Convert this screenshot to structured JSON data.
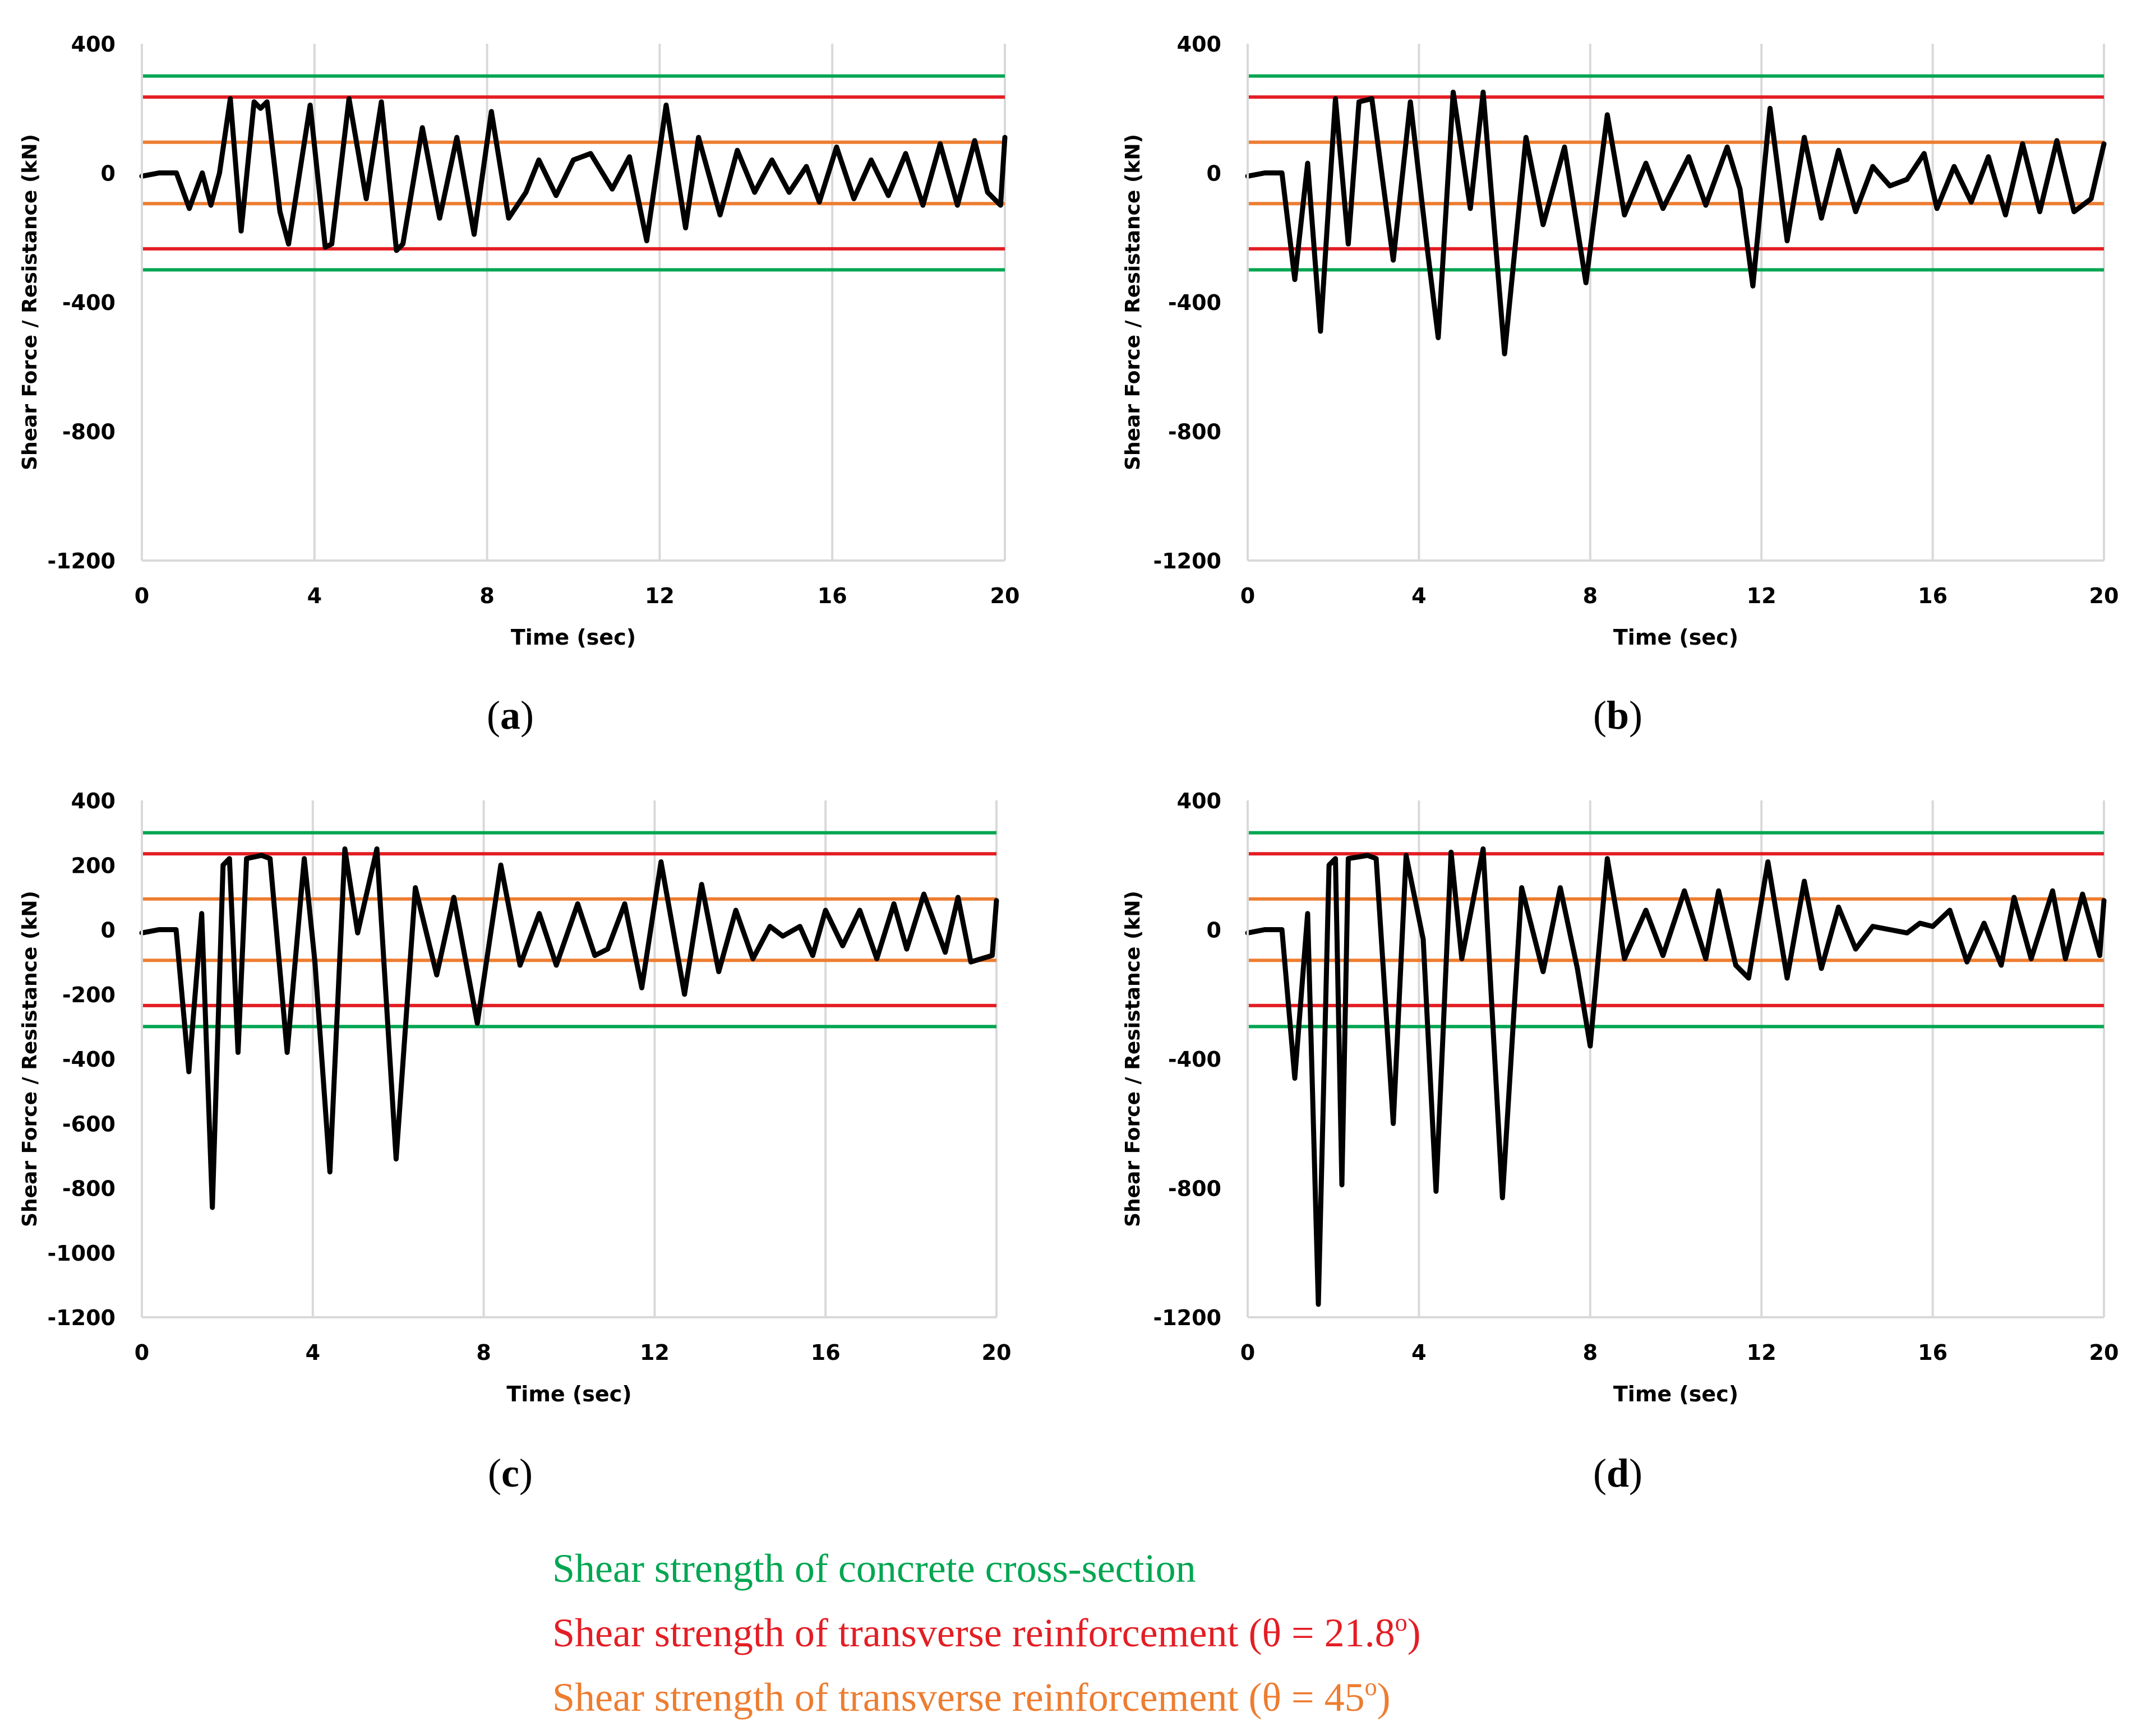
{
  "legend": [
    {
      "label": "Shear strength of concrete cross-section",
      "color": "#00A651"
    },
    {
      "label_pre": "Shear strength of transverse reinforcement (θ = 21.8",
      "sup": "o",
      "label_post": ")",
      "color": "#E31E24"
    },
    {
      "label_pre": "Shear strength of transverse reinforcement (θ = 45",
      "sup": "o",
      "label_post": ")",
      "color": "#ED7D31"
    }
  ],
  "chart_data": [
    {
      "id": "a",
      "caption_letter": "a",
      "type": "line",
      "xlabel": "Time (sec)",
      "ylabel": "Shear Force / Resistance (kN)",
      "xlim": [
        0,
        20
      ],
      "ylim": [
        -1200,
        400
      ],
      "xticks": [
        "0",
        "4",
        "8",
        "12",
        "16",
        "20"
      ],
      "yticks": [
        "400",
        "0",
        "-400",
        "-800",
        "-1200"
      ],
      "ytick_values": [
        400,
        0,
        -400,
        -800,
        -1200
      ],
      "reference_lines": [
        {
          "name": "concrete",
          "color": "#00A651",
          "values": [
            300,
            -300
          ]
        },
        {
          "name": "reinf-21.8",
          "color": "#E31E24",
          "values": [
            235,
            -235
          ]
        },
        {
          "name": "reinf-45",
          "color": "#ED7D31",
          "values": [
            95,
            -95
          ]
        }
      ],
      "series": [
        {
          "name": "shear force",
          "x": [
            0,
            0.4,
            0.8,
            1.1,
            1.4,
            1.6,
            1.8,
            2.05,
            2.3,
            2.6,
            2.75,
            2.9,
            3.2,
            3.4,
            3.9,
            4.25,
            4.4,
            4.8,
            5.2,
            5.55,
            5.9,
            6.05,
            6.5,
            6.9,
            7.3,
            7.7,
            8.1,
            8.5,
            8.9,
            9.2,
            9.6,
            10.0,
            10.4,
            10.9,
            11.3,
            11.7,
            12.15,
            12.6,
            12.9,
            13.4,
            13.8,
            14.2,
            14.6,
            15.0,
            15.4,
            15.7,
            16.1,
            16.5,
            16.9,
            17.3,
            17.7,
            18.1,
            18.5,
            18.9,
            19.3,
            19.6,
            19.9,
            20.0
          ],
          "y": [
            -10,
            0,
            0,
            -110,
            0,
            -100,
            0,
            230,
            -180,
            220,
            200,
            220,
            -120,
            -220,
            210,
            -230,
            -220,
            230,
            -80,
            220,
            -240,
            -220,
            140,
            -140,
            110,
            -190,
            190,
            -140,
            -60,
            40,
            -70,
            40,
            60,
            -50,
            50,
            -210,
            210,
            -170,
            110,
            -130,
            70,
            -60,
            40,
            -60,
            20,
            -90,
            80,
            -80,
            40,
            -70,
            60,
            -100,
            90,
            -100,
            100,
            -60,
            -100,
            110
          ]
        }
      ]
    },
    {
      "id": "b",
      "caption_letter": "b",
      "type": "line",
      "xlabel": "Time (sec)",
      "ylabel": "Shear Force / Resistance (kN)",
      "xlim": [
        0,
        20
      ],
      "ylim": [
        -1200,
        400
      ],
      "xticks": [
        "0",
        "4",
        "8",
        "12",
        "16",
        "20"
      ],
      "yticks": [
        "400",
        "0",
        "-400",
        "-800",
        "-1200"
      ],
      "ytick_values": [
        400,
        0,
        -400,
        -800,
        -1200
      ],
      "reference_lines": [
        {
          "name": "concrete",
          "color": "#00A651",
          "values": [
            300,
            -300
          ]
        },
        {
          "name": "reinf-21.8",
          "color": "#E31E24",
          "values": [
            235,
            -235
          ]
        },
        {
          "name": "reinf-45",
          "color": "#ED7D31",
          "values": [
            95,
            -95
          ]
        }
      ],
      "series": [
        {
          "name": "shear force",
          "x": [
            0,
            0.4,
            0.8,
            1.1,
            1.4,
            1.7,
            2.05,
            2.35,
            2.6,
            2.9,
            3.4,
            3.8,
            4.2,
            4.45,
            4.8,
            5.2,
            5.5,
            6.0,
            6.5,
            6.9,
            7.4,
            7.9,
            8.4,
            8.8,
            9.3,
            9.7,
            10.3,
            10.7,
            11.2,
            11.5,
            11.8,
            12.2,
            12.6,
            13.0,
            13.4,
            13.8,
            14.2,
            14.6,
            15.0,
            15.4,
            15.8,
            16.1,
            16.5,
            16.9,
            17.3,
            17.7,
            18.1,
            18.5,
            18.9,
            19.3,
            19.7,
            20.0
          ],
          "y": [
            -10,
            0,
            0,
            -330,
            30,
            -490,
            230,
            -220,
            220,
            230,
            -270,
            220,
            -240,
            -510,
            250,
            -110,
            250,
            -560,
            110,
            -160,
            80,
            -340,
            180,
            -130,
            30,
            -110,
            50,
            -100,
            80,
            -50,
            -350,
            200,
            -210,
            110,
            -140,
            70,
            -120,
            20,
            -40,
            -20,
            60,
            -110,
            20,
            -90,
            50,
            -130,
            90,
            -120,
            100,
            -120,
            -80,
            90
          ]
        }
      ]
    },
    {
      "id": "c",
      "caption_letter": "c",
      "type": "line",
      "xlabel": "Time (sec)",
      "ylabel": "Shear Force / Resistance (kN)",
      "xlim": [
        0,
        20
      ],
      "ylim": [
        -1200,
        400
      ],
      "xticks": [
        "0",
        "4",
        "8",
        "12",
        "16",
        "20"
      ],
      "yticks": [
        "400",
        "200",
        "0",
        "-200",
        "-400",
        "-600",
        "-800",
        "-1000",
        "-1200"
      ],
      "ytick_values": [
        400,
        200,
        0,
        -200,
        -400,
        -600,
        -800,
        -1000,
        -1200
      ],
      "reference_lines": [
        {
          "name": "concrete",
          "color": "#00A651",
          "values": [
            300,
            -300
          ]
        },
        {
          "name": "reinf-21.8",
          "color": "#E31E24",
          "values": [
            235,
            -235
          ]
        },
        {
          "name": "reinf-45",
          "color": "#ED7D31",
          "values": [
            95,
            -95
          ]
        }
      ],
      "series": [
        {
          "name": "shear force",
          "x": [
            0,
            0.4,
            0.8,
            1.1,
            1.4,
            1.65,
            1.9,
            2.05,
            2.25,
            2.45,
            2.8,
            3.0,
            3.4,
            3.8,
            4.05,
            4.4,
            4.75,
            5.05,
            5.5,
            5.95,
            6.4,
            6.9,
            7.3,
            7.85,
            8.4,
            8.85,
            9.3,
            9.7,
            10.2,
            10.6,
            10.9,
            11.3,
            11.7,
            12.15,
            12.7,
            13.1,
            13.5,
            13.9,
            14.3,
            14.7,
            15.0,
            15.4,
            15.7,
            16.0,
            16.4,
            16.8,
            17.2,
            17.6,
            17.9,
            18.3,
            18.8,
            19.1,
            19.4,
            19.9,
            20.0
          ],
          "y": [
            -10,
            0,
            0,
            -440,
            50,
            -860,
            200,
            220,
            -380,
            220,
            230,
            220,
            -380,
            220,
            -100,
            -750,
            250,
            -10,
            250,
            -710,
            130,
            -140,
            100,
            -290,
            200,
            -110,
            50,
            -110,
            80,
            -80,
            -60,
            80,
            -180,
            210,
            -200,
            140,
            -130,
            60,
            -90,
            10,
            -20,
            10,
            -80,
            60,
            -50,
            60,
            -90,
            80,
            -60,
            110,
            -70,
            100,
            -100,
            -80,
            90
          ]
        }
      ]
    },
    {
      "id": "d",
      "caption_letter": "d",
      "type": "line",
      "xlabel": "Time (sec)",
      "ylabel": "Shear Force / Resistance (kN)",
      "xlim": [
        0,
        20
      ],
      "ylim": [
        -1200,
        400
      ],
      "xticks": [
        "0",
        "4",
        "8",
        "12",
        "16",
        "20"
      ],
      "yticks": [
        "400",
        "0",
        "-400",
        "-800",
        "-1200"
      ],
      "ytick_values": [
        400,
        0,
        -400,
        -800,
        -1200
      ],
      "reference_lines": [
        {
          "name": "concrete",
          "color": "#00A651",
          "values": [
            300,
            -300
          ]
        },
        {
          "name": "reinf-21.8",
          "color": "#E31E24",
          "values": [
            235,
            -235
          ]
        },
        {
          "name": "reinf-45",
          "color": "#ED7D31",
          "values": [
            95,
            -95
          ]
        }
      ],
      "series": [
        {
          "name": "shear force",
          "x": [
            0,
            0.4,
            0.8,
            1.1,
            1.4,
            1.65,
            1.9,
            2.05,
            2.2,
            2.35,
            2.8,
            3.0,
            3.4,
            3.7,
            4.1,
            4.4,
            4.75,
            5.0,
            5.5,
            5.95,
            6.4,
            6.9,
            7.3,
            7.7,
            8.0,
            8.4,
            8.8,
            9.3,
            9.7,
            10.2,
            10.7,
            11.0,
            11.4,
            11.7,
            12.15,
            12.6,
            13.0,
            13.4,
            13.8,
            14.2,
            14.6,
            15.0,
            15.4,
            15.7,
            16.0,
            16.4,
            16.8,
            17.2,
            17.6,
            17.9,
            18.3,
            18.8,
            19.1,
            19.5,
            19.9,
            20.0
          ],
          "y": [
            -10,
            0,
            0,
            -460,
            50,
            -1160,
            200,
            220,
            -790,
            220,
            230,
            220,
            -600,
            230,
            -30,
            -810,
            240,
            -90,
            250,
            -830,
            130,
            -130,
            130,
            -120,
            -360,
            220,
            -90,
            60,
            -80,
            120,
            -90,
            120,
            -110,
            -150,
            210,
            -150,
            150,
            -120,
            70,
            -60,
            10,
            0,
            -10,
            20,
            10,
            60,
            -100,
            20,
            -110,
            100,
            -90,
            120,
            -90,
            110,
            -80,
            90
          ]
        }
      ]
    }
  ]
}
